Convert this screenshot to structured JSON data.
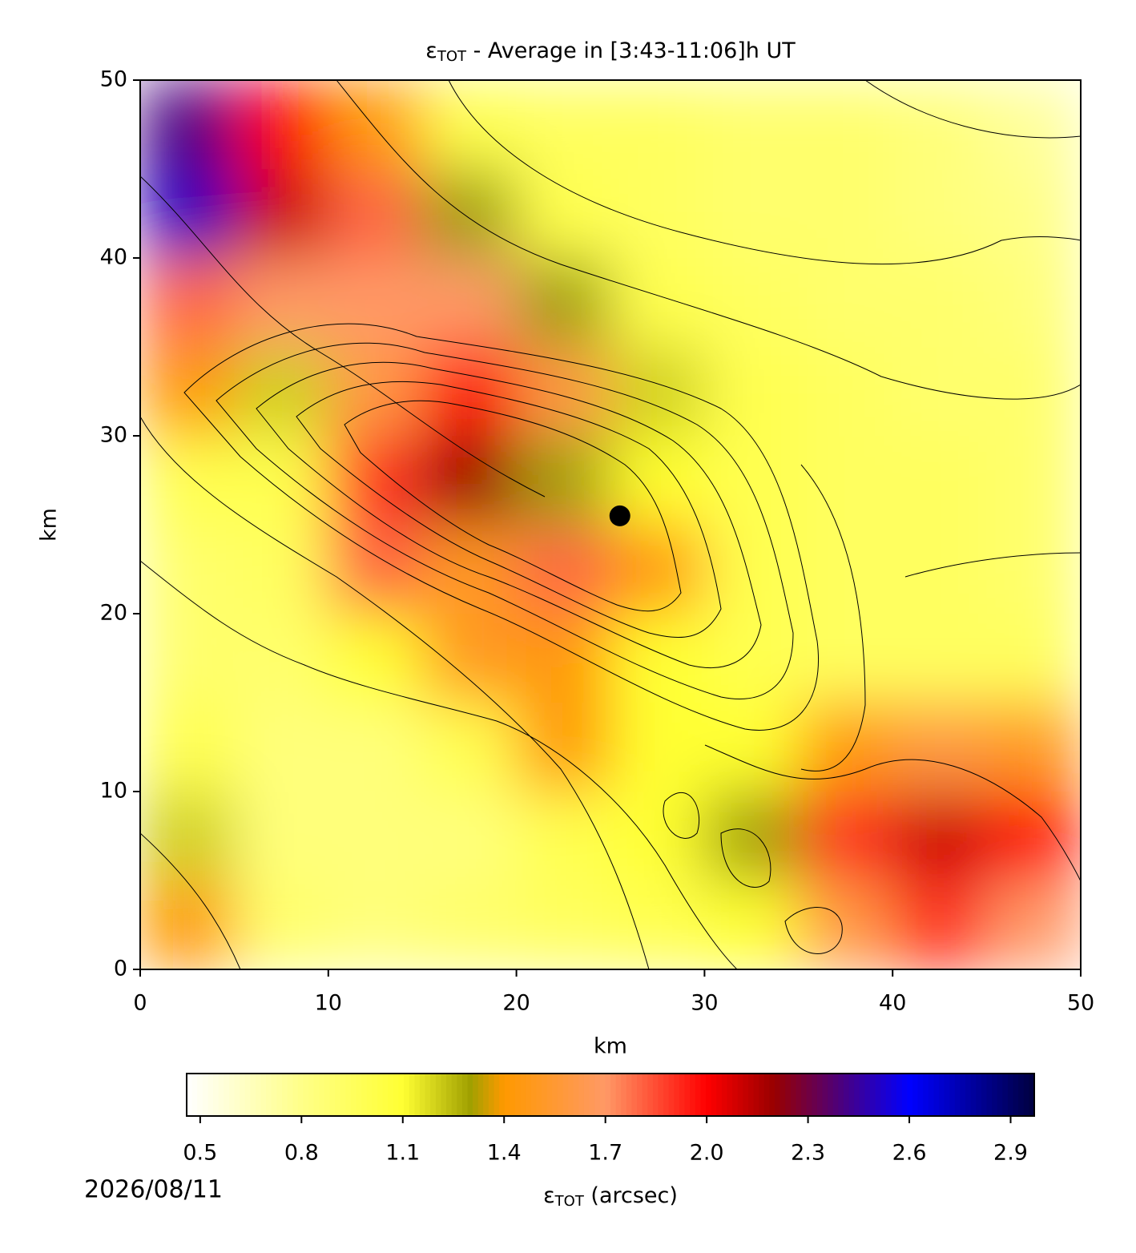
{
  "chart_data": {
    "type": "heatmap",
    "title": {
      "symbol": "ε",
      "subscript": "TOT",
      "text": " - Average in [3:43-11:06]h UT"
    },
    "xlabel": "km",
    "ylabel": "km",
    "xlim": [
      0,
      50
    ],
    "ylim": [
      0,
      50
    ],
    "xticks": [
      0,
      10,
      20,
      30,
      40,
      50
    ],
    "yticks": [
      0,
      10,
      20,
      30,
      40,
      50
    ],
    "y": [
      47.5,
      42.5,
      37.5,
      32.5,
      27.5,
      22.5,
      17.5,
      12.5,
      7.5,
      2.5
    ],
    "x": [
      2.5,
      7.5,
      12.5,
      17.5,
      22.5,
      27.5,
      32.5,
      37.5,
      42.5,
      47.5
    ],
    "z": [
      [
        2.4,
        2.0,
        1.4,
        1.0,
        0.95,
        0.95,
        0.9,
        0.9,
        0.85,
        0.75
      ],
      [
        2.5,
        2.1,
        1.8,
        1.3,
        1.0,
        0.95,
        0.9,
        0.9,
        0.85,
        0.8
      ],
      [
        1.8,
        1.7,
        1.7,
        1.7,
        1.3,
        1.0,
        0.95,
        0.9,
        0.9,
        0.85
      ],
      [
        1.4,
        1.2,
        1.6,
        2.0,
        1.6,
        1.2,
        1.0,
        0.95,
        0.9,
        0.9
      ],
      [
        1.0,
        1.0,
        1.9,
        2.2,
        1.3,
        1.1,
        1.0,
        0.95,
        0.95,
        0.9
      ],
      [
        0.9,
        0.95,
        1.8,
        1.5,
        1.8,
        1.4,
        1.0,
        0.95,
        0.95,
        0.9
      ],
      [
        0.9,
        0.9,
        1.1,
        1.5,
        1.4,
        1.1,
        1.0,
        0.95,
        0.95,
        0.95
      ],
      [
        1.0,
        0.85,
        0.85,
        1.0,
        1.4,
        1.1,
        1.1,
        1.4,
        1.6,
        1.5
      ],
      [
        1.2,
        0.85,
        0.85,
        0.85,
        1.0,
        1.1,
        1.3,
        1.9,
        2.1,
        2.0
      ],
      [
        1.4,
        0.9,
        0.85,
        0.9,
        0.95,
        1.0,
        1.1,
        1.6,
        1.9,
        1.7
      ]
    ],
    "colormap": [
      [
        0.46,
        "#ffffff"
      ],
      [
        0.8,
        "#ffff88"
      ],
      [
        1.1,
        "#ffff33"
      ],
      [
        1.3,
        "#a0a000"
      ],
      [
        1.4,
        "#ff9900"
      ],
      [
        1.7,
        "#ff9966"
      ],
      [
        2.0,
        "#ff0000"
      ],
      [
        2.2,
        "#990000"
      ],
      [
        2.4,
        "#4a0080"
      ],
      [
        2.6,
        "#0000ff"
      ],
      [
        2.97,
        "#000040"
      ]
    ],
    "clim": [
      0.46,
      2.97
    ],
    "colorbar_ticks": [
      0.5,
      0.8,
      1.1,
      1.4,
      1.7,
      {
        "value": 2.0,
        "label": "2.0"
      },
      2.3,
      2.6,
      2.9
    ],
    "colorbar_label": {
      "symbol": "ε",
      "subscript": "TOT",
      "text": " (arcsec)"
    },
    "marker": {
      "x": 25.5,
      "y": 25.5
    },
    "date": "2026/08/11"
  }
}
